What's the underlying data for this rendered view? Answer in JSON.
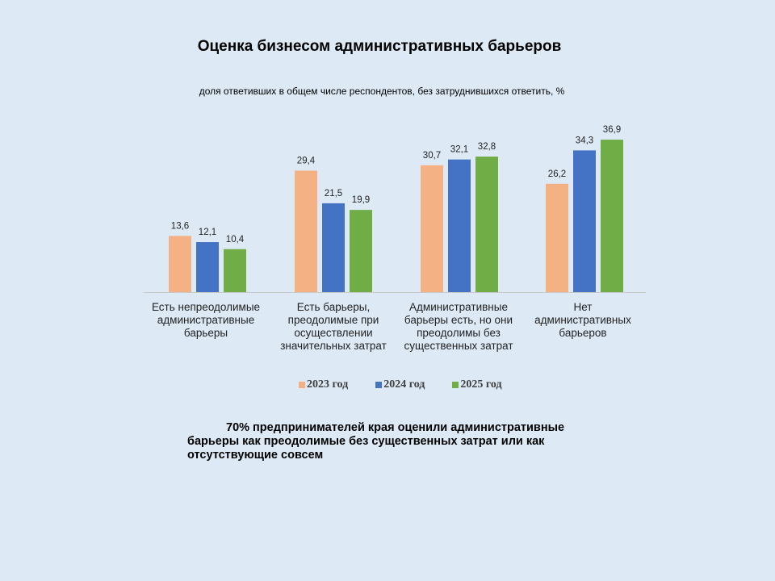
{
  "chart_data": {
    "type": "bar",
    "title": "Оценка бизнесом административных барьеров",
    "subtitle": "доля ответивших в общем числе респондентов, без затруднившихся ответить, %",
    "categories": [
      "Есть непреодолимые административные барьеры",
      "Есть барьеры, преодолимые при осуществлении значительных затрат",
      "Административные барьеры есть, но они преодолимы без существенных затрат",
      "Нет административных барьеров"
    ],
    "series": [
      {
        "name": "2023 год",
        "color": "#f4b183",
        "values": [
          13.6,
          29.4,
          30.7,
          26.2
        ],
        "labels": [
          "13,6",
          "29,4",
          "30,7",
          "26,2"
        ]
      },
      {
        "name": "2024 год",
        "color": "#4472c4",
        "values": [
          12.1,
          21.5,
          32.1,
          34.3
        ],
        "labels": [
          "12,1",
          "21,5",
          "32,1",
          "34,3"
        ]
      },
      {
        "name": "2025 год",
        "color": "#70ad47",
        "values": [
          10.4,
          19.9,
          32.8,
          36.9
        ],
        "labels": [
          "10,4",
          "19,9",
          "32,8",
          "36,9"
        ]
      }
    ],
    "ylim": [
      0,
      40
    ],
    "grid": false,
    "legend": "bottom"
  },
  "note": "70% предпринимателей края оценили административные барьеры как преодолимые без существенных затрат или как отсутствующие совсем"
}
